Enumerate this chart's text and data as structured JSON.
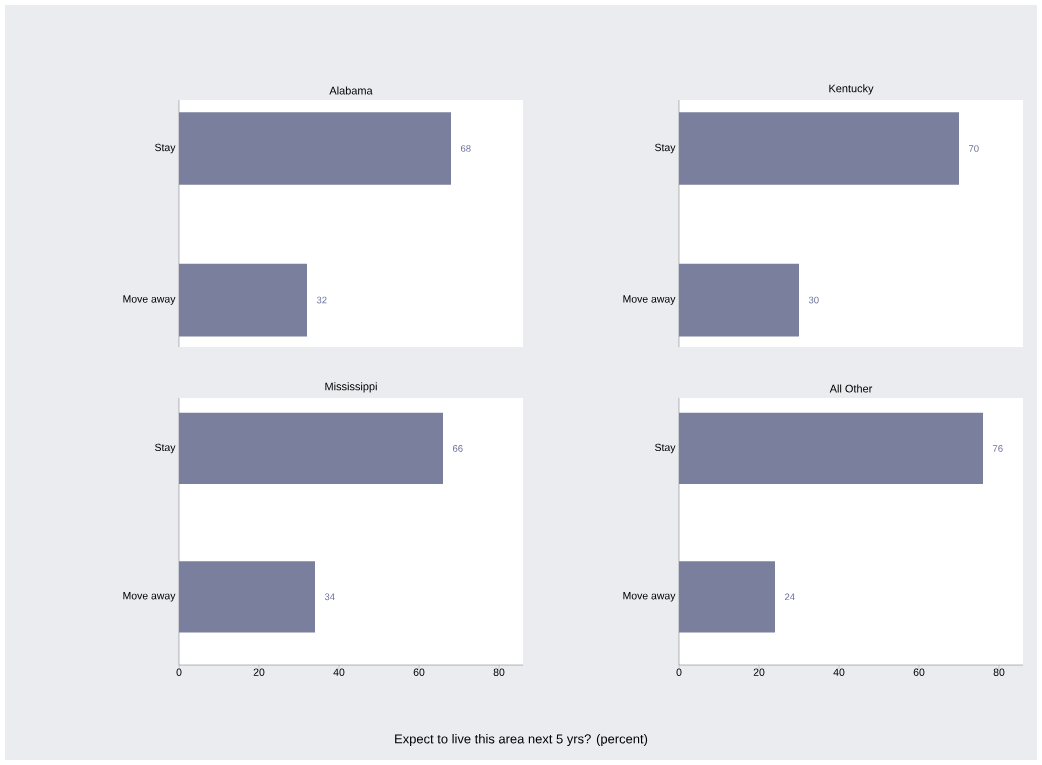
{
  "chart_data": [
    {
      "type": "bar",
      "orientation": "horizontal",
      "title": "Alabama",
      "categories": [
        "Stay",
        "Move away"
      ],
      "values": [
        68,
        32
      ],
      "color": "#7b7f9e",
      "xlim": [
        0,
        86
      ],
      "xticks": [
        0,
        20,
        40,
        60,
        80
      ],
      "data_labels": true,
      "tick_labels": "y"
    },
    {
      "type": "bar",
      "orientation": "horizontal",
      "title": "Kentucky",
      "categories": [
        "Stay",
        "Move away"
      ],
      "values": [
        70,
        30
      ],
      "color": "#7b7f9e",
      "xlim": [
        0,
        86
      ],
      "xticks": [
        0,
        20,
        40,
        60,
        80
      ],
      "data_labels": true,
      "tick_labels": "y"
    },
    {
      "type": "bar",
      "orientation": "horizontal",
      "title": "Mississippi",
      "categories": [
        "Stay",
        "Move away"
      ],
      "values": [
        66,
        34
      ],
      "color": "#7b7f9e",
      "xlim": [
        0,
        86
      ],
      "xticks": [
        0,
        20,
        40,
        60,
        80
      ],
      "data_labels": true,
      "xlabel": "Expect to live this area next 5 yrs?  (percent)"
    },
    {
      "type": "bar",
      "orientation": "horizontal",
      "title": "All Other",
      "categories": [
        "Stay",
        "Move away"
      ],
      "values": [
        76,
        24
      ],
      "color": "#7b7f9e",
      "xlim": [
        0,
        86
      ],
      "xticks": [
        0,
        20,
        40,
        60,
        80
      ],
      "data_labels": true
    }
  ]
}
